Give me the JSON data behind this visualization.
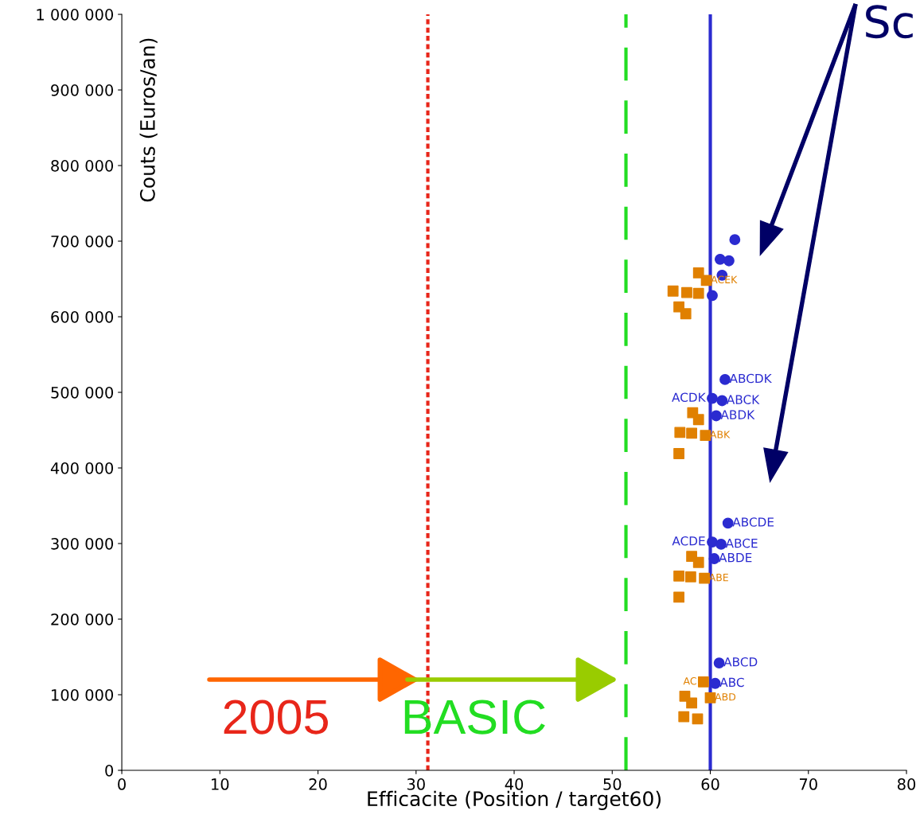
{
  "chart_data": {
    "type": "scatter",
    "xlabel": "Efficacite (Position / target60)",
    "ylabel": "Couts (Euros/an)",
    "xlim": [
      0,
      80
    ],
    "xticks": [
      0,
      10,
      20,
      30,
      40,
      50,
      60,
      70,
      80
    ],
    "ylim": [
      0,
      1000000
    ],
    "yticks": [
      {
        "value": 0,
        "label": "0"
      },
      {
        "value": 100000,
        "label": "100 000"
      },
      {
        "value": 200000,
        "label": "200 000"
      },
      {
        "value": 300000,
        "label": "300 000"
      },
      {
        "value": 400000,
        "label": "400 000"
      },
      {
        "value": 500000,
        "label": "500 000"
      },
      {
        "value": 600000,
        "label": "600 000"
      },
      {
        "value": 700000,
        "label": "700 000"
      },
      {
        "value": 800000,
        "label": "800 000"
      },
      {
        "value": 900000,
        "label": "900 000"
      },
      {
        "value": 1000000,
        "label": "1 000 000"
      }
    ],
    "grid": false,
    "legend": false,
    "series": [
      {
        "color": "#2b2bd0",
        "marker": "circle",
        "x": [
          62.5,
          61.0,
          61.9,
          61.2,
          60.2,
          61.5,
          60.2,
          61.2,
          60.6,
          61.8,
          60.2,
          61.1,
          60.4,
          60.9,
          60.5
        ],
        "values": [
          702000,
          676000,
          674000,
          655000,
          628000,
          517000,
          492000,
          489000,
          469000,
          327000,
          302000,
          299000,
          280000,
          142000,
          115000
        ]
      },
      {
        "color": "#e08000",
        "marker": "square",
        "x": [
          58.8,
          59.6,
          56.2,
          57.6,
          58.8,
          56.8,
          57.5,
          58.2,
          58.8,
          56.9,
          58.1,
          59.5,
          56.8,
          58.1,
          58.8,
          56.8,
          58.0,
          59.4,
          56.8,
          59.3,
          60.0,
          57.4,
          58.1,
          57.3,
          58.7
        ],
        "values": [
          658000,
          648000,
          634000,
          632000,
          631000,
          613000,
          604000,
          473000,
          464000,
          447000,
          446000,
          443000,
          419000,
          283000,
          275000,
          257000,
          256000,
          254000,
          229000,
          117000,
          96000,
          98000,
          89000,
          71000,
          68000
        ]
      }
    ],
    "ref_lines": [
      {
        "axis": "x",
        "value": 31.2,
        "color": "#e8261a",
        "line_style": "dotted"
      },
      {
        "axis": "x",
        "value": 51.4,
        "color": "#22dd22",
        "line_style": "dashed"
      },
      {
        "axis": "x",
        "value": 60.0,
        "color": "#2b2bd0",
        "line_style": "solid"
      }
    ],
    "annotations": [
      {
        "text": "2005",
        "x": 31.2,
        "y": 120000
      },
      {
        "text": "BASIC",
        "x": 51.4,
        "y": 120000
      },
      {
        "text": "ACEK",
        "x": 59.6,
        "y": 648000
      },
      {
        "text": "ABCDK",
        "x": 61.5,
        "y": 517000
      },
      {
        "text": "ACDK",
        "x": 60.2,
        "y": 492000
      },
      {
        "text": "ABCK",
        "x": 61.2,
        "y": 489000
      },
      {
        "text": "ABDK",
        "x": 60.6,
        "y": 469000
      },
      {
        "text": "ABK",
        "x": 59.5,
        "y": 443000
      },
      {
        "text": "ABCDE",
        "x": 61.8,
        "y": 327000
      },
      {
        "text": "ACDE",
        "x": 60.2,
        "y": 302000
      },
      {
        "text": "ABCE",
        "x": 61.1,
        "y": 299000
      },
      {
        "text": "ABDE",
        "x": 60.4,
        "y": 280000
      },
      {
        "text": "ABE",
        "x": 59.4,
        "y": 254000
      },
      {
        "text": "ABCD",
        "x": 60.9,
        "y": 142000
      },
      {
        "text": "AC",
        "x": 59.3,
        "y": 117000
      },
      {
        "text": "ABC",
        "x": 60.5,
        "y": 115000
      },
      {
        "text": "ABD",
        "x": 60.0,
        "y": 96000
      },
      "Sc"
    ]
  }
}
